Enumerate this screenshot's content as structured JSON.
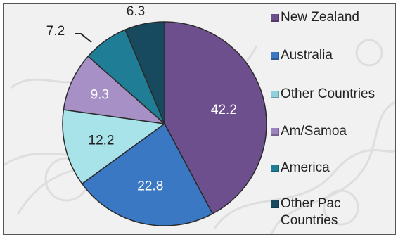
{
  "chart_data": {
    "type": "pie",
    "slices": [
      {
        "label": "New Zealand",
        "value": 42.2,
        "color": "#6e4f8e",
        "value_text": "42.2",
        "label_color": "#ffffff"
      },
      {
        "label": "Australia",
        "value": 22.8,
        "color": "#3b78c4",
        "value_text": "22.8",
        "label_color": "#ffffff"
      },
      {
        "label": "Other Countries",
        "value": 12.2,
        "color": "#a8e3ea",
        "value_text": "12.2",
        "label_color": "#222222"
      },
      {
        "label": "Am/Samoa",
        "value": 9.3,
        "color": "#a690c6",
        "value_text": "9.3",
        "label_color": "#ffffff"
      },
      {
        "label": "America",
        "value": 7.2,
        "color": "#1f7e96",
        "value_text": "7.2",
        "label_color": "#222222"
      },
      {
        "label": "Other Pac Countries",
        "value": 6.3,
        "color": "#174a5e",
        "value_text": "6.3",
        "label_color": "#222222"
      }
    ],
    "legend": {
      "position": "right",
      "entries": [
        {
          "lines": [
            "New Zealand"
          ],
          "color": "#6e4f8e"
        },
        {
          "lines": [
            "Australia"
          ],
          "color": "#3b78c4"
        },
        {
          "lines": [
            "Other Countries"
          ],
          "color": "#8fd2dd"
        },
        {
          "lines": [
            "Am/Samoa"
          ],
          "color": "#9c85bf"
        },
        {
          "lines": [
            "America"
          ],
          "color": "#1f7e96"
        },
        {
          "lines": [
            "Other Pac",
            "Countries"
          ],
          "color": "#174a5e"
        }
      ]
    },
    "start_angle_deg": 0,
    "direction": "clockwise"
  }
}
